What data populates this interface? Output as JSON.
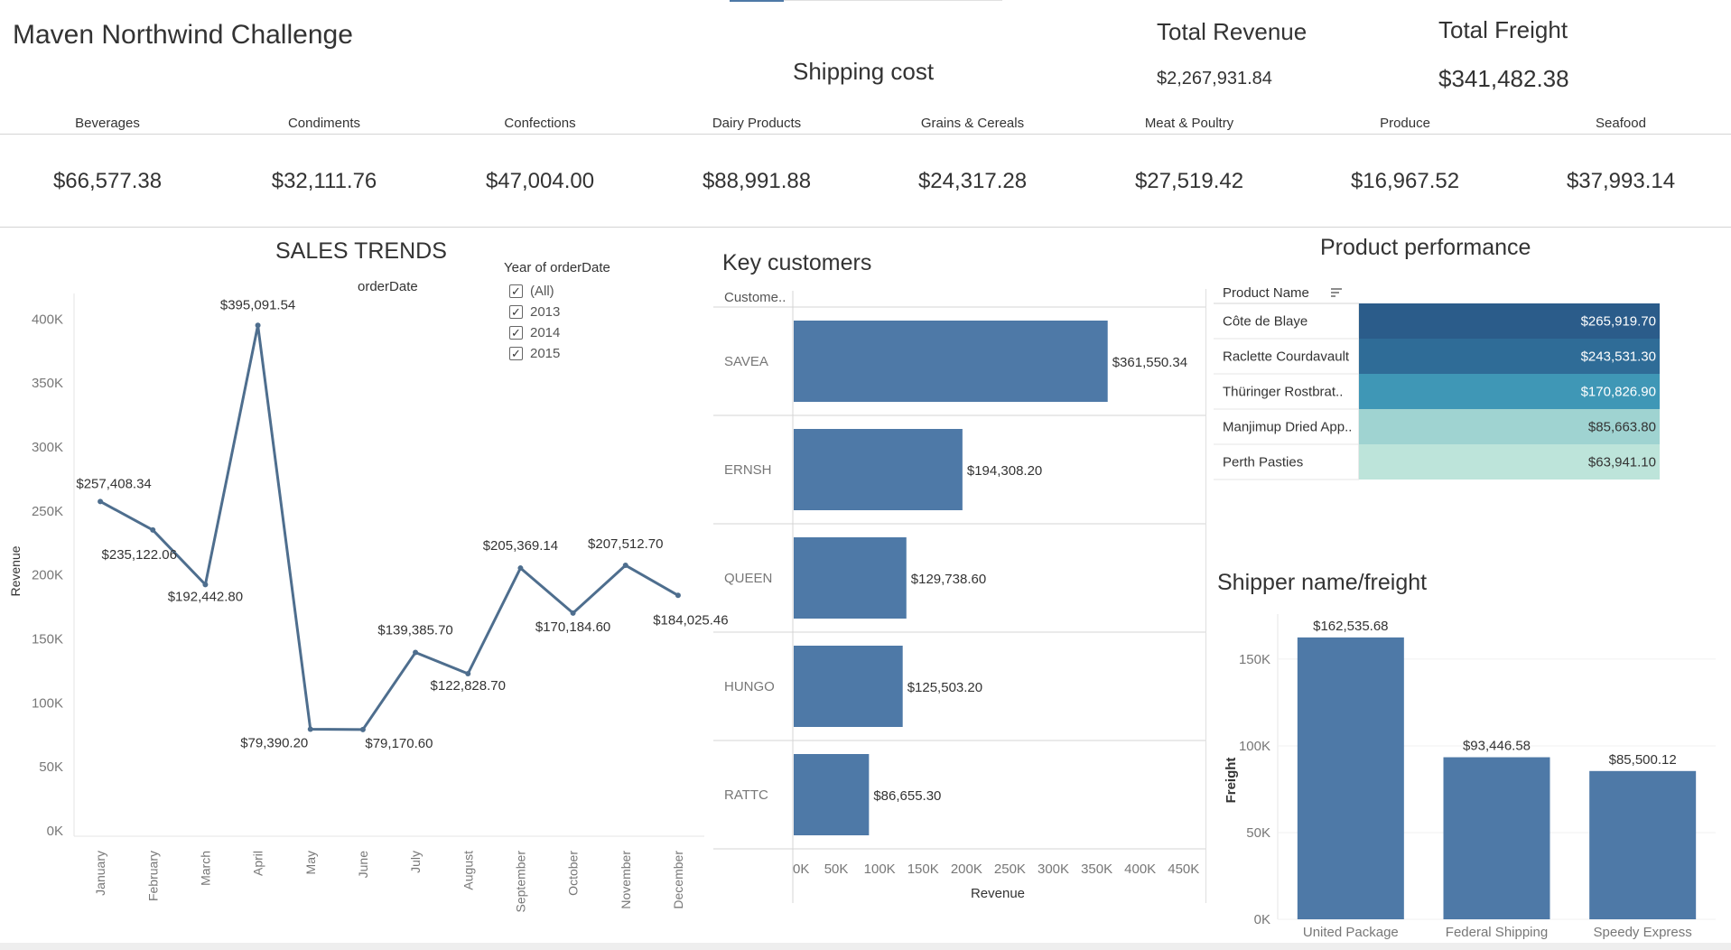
{
  "header": {
    "title": "Maven Northwind Challenge",
    "shipping_title": "Shipping cost",
    "total_revenue_label": "Total Revenue",
    "total_revenue_value": "$2,267,931.84",
    "total_freight_label": "Total Freight",
    "total_freight_value": "$341,482.38"
  },
  "categories": [
    {
      "name": "Beverages",
      "value": "$66,577.38"
    },
    {
      "name": "Condiments",
      "value": "$32,111.76"
    },
    {
      "name": "Confections",
      "value": "$47,004.00"
    },
    {
      "name": "Dairy Products",
      "value": "$88,991.88"
    },
    {
      "name": "Grains & Cereals",
      "value": "$24,317.28"
    },
    {
      "name": "Meat & Poultry",
      "value": "$27,519.42"
    },
    {
      "name": "Produce",
      "value": "$16,967.52"
    },
    {
      "name": "Seafood",
      "value": "$37,993.14"
    }
  ],
  "filter": {
    "title": "Year of orderDate",
    "options": [
      {
        "label": "(All)",
        "checked": true
      },
      {
        "label": "2013",
        "checked": true
      },
      {
        "label": "2014",
        "checked": true
      },
      {
        "label": "2015",
        "checked": true
      }
    ]
  },
  "chart_data": [
    {
      "type": "line",
      "title": "SALES TRENDS",
      "subtitle": "orderDate",
      "ylabel": "Revenue",
      "ylim": [
        0,
        420000
      ],
      "yticks": [
        0,
        50000,
        100000,
        150000,
        200000,
        250000,
        300000,
        350000,
        400000
      ],
      "ytick_labels": [
        "0K",
        "50K",
        "100K",
        "150K",
        "200K",
        "250K",
        "300K",
        "350K",
        "400K"
      ],
      "x": [
        "January",
        "February",
        "March",
        "April",
        "May",
        "June",
        "July",
        "August",
        "September",
        "October",
        "November",
        "December"
      ],
      "values": [
        257408.34,
        235122.06,
        192442.8,
        395091.54,
        79390.2,
        79170.6,
        139385.7,
        122828.7,
        205369.14,
        170184.6,
        207512.7,
        184025.46
      ],
      "data_labels": [
        "$257,408.34",
        "$235,122.06",
        "$192,442.80",
        "$395,091.54",
        "$79,390.20",
        "$79,170.60",
        "$139,385.70",
        "$122,828.70",
        "$205,369.14",
        "$170,184.60",
        "$207,512.70",
        "$184,025.46"
      ],
      "color": "#4e6e8e",
      "grid": false
    },
    {
      "type": "bar",
      "orientation": "horizontal",
      "title": "Key customers",
      "row_header": "Custome..",
      "categories": [
        "SAVEA",
        "ERNSH",
        "QUEEN",
        "HUNGO",
        "RATTC"
      ],
      "values": [
        361550.34,
        194308.2,
        129738.6,
        125503.2,
        86655.3
      ],
      "data_labels": [
        "$361,550.34",
        "$194,308.20",
        "$129,738.60",
        "$125,503.20",
        "$86,655.30"
      ],
      "xlabel": "Revenue",
      "xlim": [
        0,
        470000
      ],
      "xticks": [
        0,
        50000,
        100000,
        150000,
        200000,
        250000,
        300000,
        350000,
        400000,
        450000
      ],
      "xtick_labels": [
        "0K",
        "50K",
        "100K",
        "150K",
        "200K",
        "250K",
        "300K",
        "350K",
        "400K",
        "450K"
      ],
      "color": "#4e79a7"
    },
    {
      "type": "table",
      "title": "Product performance",
      "column_header": "Product Name",
      "rows": [
        {
          "name": "Côte de Blaye",
          "value": 265919.7,
          "label": "$265,919.70",
          "color": "#2b5c8a"
        },
        {
          "name": "Raclette Courdavault",
          "value": 243531.3,
          "label": "$243,531.30",
          "color": "#2f6c97"
        },
        {
          "name": "Thüringer Rostbrat..",
          "value": 170826.9,
          "label": "$170,826.90",
          "color": "#3f97b6"
        },
        {
          "name": "Manjimup Dried App..",
          "value": 85663.8,
          "label": "$85,663.80",
          "color": "#9fd3d1"
        },
        {
          "name": "Perth Pasties",
          "value": 63941.1,
          "label": "$63,941.10",
          "color": "#bde4da"
        }
      ]
    },
    {
      "type": "bar",
      "title": "Shipper name/freight",
      "ylabel": "Freight",
      "categories": [
        "United Package",
        "Federal Shipping",
        "Speedy Express"
      ],
      "values": [
        162535.68,
        93446.58,
        85500.12
      ],
      "data_labels": [
        "$162,535.68",
        "$93,446.58",
        "$85,500.12"
      ],
      "ylim": [
        0,
        176000
      ],
      "yticks": [
        0,
        50000,
        100000,
        150000
      ],
      "ytick_labels": [
        "0K",
        "50K",
        "100K",
        "150K"
      ],
      "color": "#4e79a7"
    }
  ]
}
